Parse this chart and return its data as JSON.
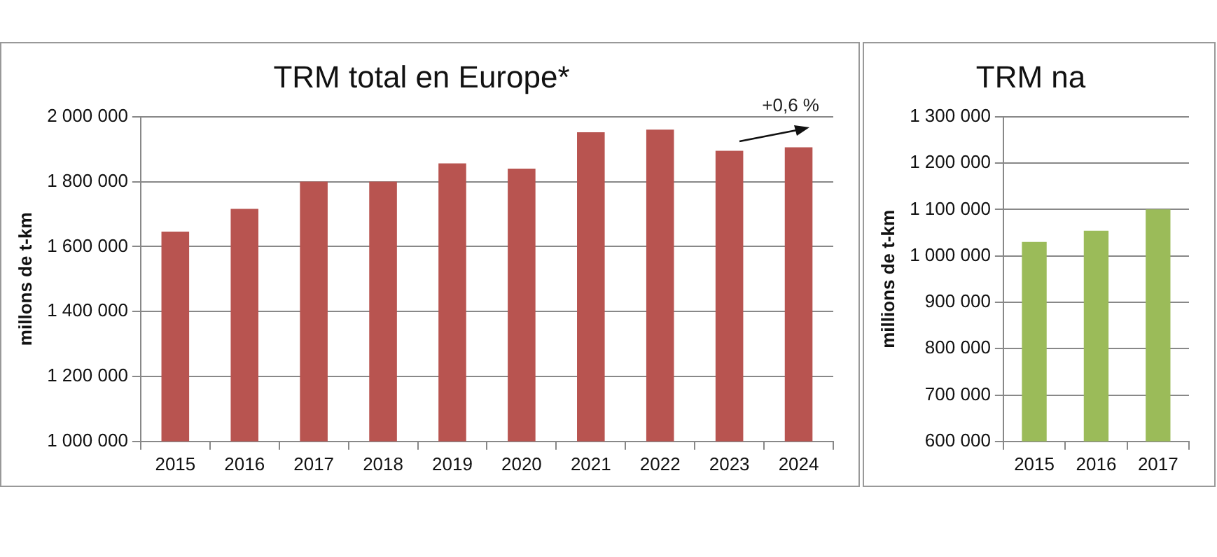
{
  "chart_data": [
    {
      "type": "bar",
      "title": "TRM total en Europe*",
      "ylabel": "millons de t-km",
      "categories": [
        "2015",
        "2016",
        "2017",
        "2018",
        "2019",
        "2020",
        "2021",
        "2022",
        "2023",
        "2024"
      ],
      "values": [
        1646000,
        1716000,
        1800000,
        1800000,
        1856000,
        1840000,
        1952000,
        1960000,
        1895000,
        1906000
      ],
      "color": "#b85450",
      "ylim": [
        1000000,
        2000000
      ],
      "yticks": [
        {
          "value": 1000000,
          "label": "1 000 000"
        },
        {
          "value": 1200000,
          "label": "1 200 000"
        },
        {
          "value": 1400000,
          "label": "1 400 000"
        },
        {
          "value": 1600000,
          "label": "1 600 000"
        },
        {
          "value": 1800000,
          "label": "1 800 000"
        },
        {
          "value": 2000000,
          "label": "2 000 000"
        }
      ],
      "grid": "y",
      "annotations": [
        "+0,6 %"
      ]
    },
    {
      "type": "bar",
      "title": "TRM na",
      "ylabel": "millions de t-km",
      "categories": [
        "2015",
        "2016",
        "2017"
      ],
      "values": [
        1030000,
        1054000,
        1100000
      ],
      "color": "#9bbb59",
      "ylim": [
        600000,
        1300000
      ],
      "yticks": [
        {
          "value": 600000,
          "label": "600 000"
        },
        {
          "value": 700000,
          "label": "700 000"
        },
        {
          "value": 800000,
          "label": "800 000"
        },
        {
          "value": 900000,
          "label": "900 000"
        },
        {
          "value": 1000000,
          "label": "1 000 000"
        },
        {
          "value": 1100000,
          "label": "1 100 000"
        },
        {
          "value": 1200000,
          "label": "1 200 000"
        },
        {
          "value": 1300000,
          "label": "1 300 000"
        }
      ],
      "grid": "y"
    }
  ]
}
